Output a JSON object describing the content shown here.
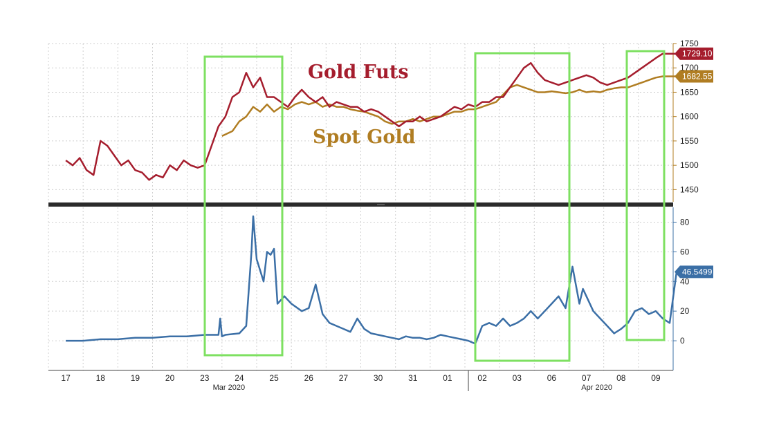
{
  "chart_data": [
    {
      "type": "line",
      "x_labels": [
        "17",
        "18",
        "19",
        "20",
        "23",
        "24",
        "25",
        "26",
        "27",
        "30",
        "31",
        "01",
        "02",
        "03",
        "06",
        "07",
        "08",
        "09"
      ],
      "months": [
        "Mar 2020",
        "Apr 2020"
      ],
      "ylim": [
        1425,
        1750
      ],
      "y_ticks": [
        1450,
        1500,
        1550,
        1600,
        1650,
        1700,
        1750
      ],
      "grid": true,
      "series": [
        {
          "name": "Gold Futs",
          "color": "#a51d2d",
          "last_label": "1729.10",
          "x": [
            0,
            0.2,
            0.4,
            0.6,
            0.8,
            1.0,
            1.2,
            1.4,
            1.6,
            1.8,
            2.0,
            2.2,
            2.4,
            2.6,
            2.8,
            3.0,
            3.2,
            3.4,
            3.6,
            3.8,
            4.0,
            4.2,
            4.4,
            4.6,
            4.8,
            5.0,
            5.2,
            5.4,
            5.6,
            5.8,
            6.0,
            6.2,
            6.4,
            6.6,
            6.8,
            7.0,
            7.2,
            7.4,
            7.6,
            7.8,
            8.0,
            8.2,
            8.4,
            8.6,
            8.8,
            9.0,
            9.2,
            9.4,
            9.6,
            9.8,
            10.0,
            10.2,
            10.4,
            10.6,
            10.8,
            11.0,
            11.2,
            11.4,
            11.6,
            11.8,
            12.0,
            12.2,
            12.4,
            12.6,
            12.8,
            13.0,
            13.2,
            13.4,
            13.6,
            13.8,
            14.0,
            14.2,
            14.4,
            14.6,
            14.8,
            15.0,
            15.2,
            15.4,
            15.6,
            15.8,
            16.0,
            16.2,
            16.4,
            16.6,
            16.8,
            17.0,
            17.2,
            17.4,
            17.6
          ],
          "values": [
            1510,
            1500,
            1515,
            1490,
            1480,
            1550,
            1540,
            1520,
            1500,
            1510,
            1490,
            1485,
            1470,
            1480,
            1475,
            1500,
            1490,
            1510,
            1500,
            1495,
            1500,
            1540,
            1580,
            1600,
            1640,
            1650,
            1690,
            1660,
            1680,
            1640,
            1640,
            1630,
            1620,
            1640,
            1655,
            1640,
            1630,
            1640,
            1620,
            1630,
            1625,
            1620,
            1620,
            1610,
            1615,
            1610,
            1600,
            1590,
            1580,
            1590,
            1590,
            1600,
            1590,
            1595,
            1600,
            1610,
            1620,
            1615,
            1625,
            1620,
            1630,
            1630,
            1640,
            1640,
            1660,
            1680,
            1700,
            1710,
            1690,
            1675,
            1670,
            1665,
            1670,
            1675,
            1680,
            1685,
            1680,
            1670,
            1665,
            1670,
            1675,
            1680,
            1690,
            1700,
            1710,
            1720,
            1729.1,
            1729.1,
            1729.1
          ]
        },
        {
          "name": "Spot Gold",
          "color": "#b07d22",
          "last_label": "1682.55",
          "x": [
            4.5,
            4.8,
            5.0,
            5.2,
            5.4,
            5.6,
            5.8,
            6.0,
            6.2,
            6.4,
            6.6,
            6.8,
            7.0,
            7.2,
            7.4,
            7.6,
            7.8,
            8.0,
            8.2,
            8.4,
            8.6,
            8.8,
            9.0,
            9.2,
            9.4,
            9.6,
            9.8,
            10.0,
            10.2,
            10.4,
            10.6,
            10.8,
            11.0,
            11.2,
            11.4,
            11.6,
            11.8,
            12.0,
            12.2,
            12.4,
            12.6,
            12.8,
            13.0,
            13.2,
            13.4,
            13.6,
            13.8,
            14.0,
            14.2,
            14.4,
            14.6,
            14.8,
            15.0,
            15.2,
            15.4,
            15.6,
            15.8,
            16.0,
            16.2,
            16.4,
            16.6,
            16.8,
            17.0,
            17.2,
            17.4,
            17.6
          ],
          "values": [
            1560,
            1570,
            1590,
            1600,
            1620,
            1610,
            1625,
            1610,
            1620,
            1615,
            1625,
            1630,
            1625,
            1630,
            1620,
            1625,
            1620,
            1620,
            1615,
            1612,
            1610,
            1605,
            1600,
            1590,
            1585,
            1590,
            1590,
            1595,
            1590,
            1595,
            1600,
            1600,
            1605,
            1610,
            1610,
            1615,
            1615,
            1620,
            1625,
            1630,
            1645,
            1660,
            1665,
            1660,
            1655,
            1650,
            1650,
            1652,
            1650,
            1648,
            1650,
            1655,
            1650,
            1652,
            1650,
            1655,
            1658,
            1660,
            1660,
            1665,
            1670,
            1675,
            1680,
            1682.55,
            1682.55,
            1682.55
          ]
        }
      ],
      "annotations": [
        "Gold Futs",
        "Spot Gold"
      ]
    },
    {
      "type": "line",
      "ylim": [
        -20,
        90
      ],
      "y_ticks": [
        0,
        20,
        40,
        60,
        80
      ],
      "grid": true,
      "series": [
        {
          "color": "#3b6fa6",
          "last_label": "46.5499",
          "x": [
            0,
            0.5,
            1,
            1.5,
            2,
            2.5,
            3,
            3.5,
            4,
            4.4,
            4.45,
            4.5,
            4.6,
            5,
            5.2,
            5.35,
            5.4,
            5.5,
            5.7,
            5.8,
            5.9,
            6.0,
            6.1,
            6.3,
            6.5,
            6.8,
            7.0,
            7.2,
            7.4,
            7.6,
            7.8,
            8.0,
            8.2,
            8.4,
            8.6,
            8.8,
            9.0,
            9.2,
            9.4,
            9.6,
            9.8,
            10.0,
            10.2,
            10.4,
            10.6,
            10.8,
            11.0,
            11.2,
            11.4,
            11.6,
            11.8,
            12.0,
            12.2,
            12.4,
            12.6,
            12.8,
            13.0,
            13.2,
            13.4,
            13.6,
            13.8,
            14.0,
            14.2,
            14.4,
            14.6,
            14.8,
            14.9,
            15.0,
            15.2,
            15.4,
            15.6,
            15.8,
            16.0,
            16.2,
            16.4,
            16.6,
            16.8,
            17.0,
            17.2,
            17.4,
            17.6
          ],
          "values": [
            0,
            0,
            1,
            1,
            2,
            2,
            3,
            3,
            4,
            4,
            15,
            3,
            4,
            5,
            10,
            60,
            84,
            55,
            40,
            60,
            58,
            62,
            25,
            30,
            25,
            20,
            22,
            38,
            18,
            12,
            10,
            8,
            6,
            15,
            8,
            5,
            4,
            3,
            2,
            1,
            3,
            2,
            2,
            1,
            2,
            4,
            3,
            2,
            1,
            0,
            -2,
            10,
            12,
            10,
            15,
            10,
            12,
            15,
            20,
            15,
            20,
            25,
            30,
            22,
            50,
            25,
            35,
            30,
            20,
            15,
            10,
            5,
            8,
            12,
            20,
            22,
            18,
            20,
            15,
            12,
            46.5
          ]
        }
      ]
    }
  ]
}
